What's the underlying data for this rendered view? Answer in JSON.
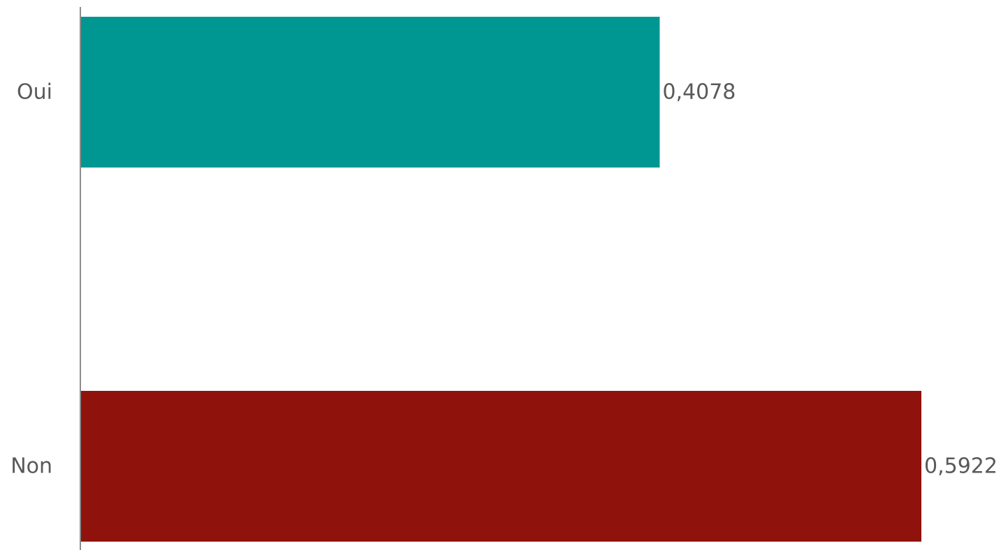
{
  "chart_data": {
    "type": "bar",
    "orientation": "horizontal",
    "categories": [
      "Oui",
      "Non"
    ],
    "values": [
      0.4078,
      0.5922
    ],
    "value_labels": [
      "0,4078",
      "0,5922"
    ],
    "colors": [
      "#009793",
      "#8f130c"
    ],
    "title": "",
    "xlabel": "",
    "ylabel": "",
    "xlim": [
      0,
      0.5922
    ],
    "grid": false,
    "legend": "none"
  }
}
